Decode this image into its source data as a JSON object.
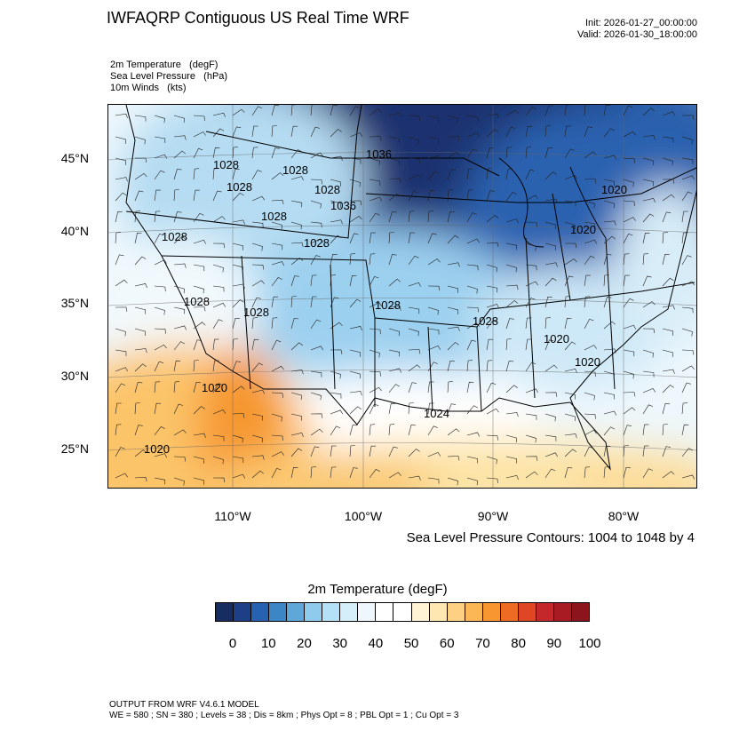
{
  "header": {
    "title": "IWFAQRP Contiguous US Real Time WRF",
    "init": "Init: 2026-01-27_00:00:00",
    "valid": "Valid: 2026-01-30_18:00:00"
  },
  "fields": [
    "2m Temperature   (degF)",
    "Sea Level Pressure   (hPa)",
    "10m Winds   (kts)"
  ],
  "map": {
    "lat_ticks": [
      "45°N",
      "40°N",
      "35°N",
      "30°N",
      "25°N"
    ],
    "lon_ticks": [
      "110°W",
      "100°W",
      "90°W",
      "80°W"
    ],
    "slp_contour_labels": [
      "1028",
      "1028",
      "1028",
      "1028",
      "1028",
      "1028",
      "1028",
      "1028",
      "1028",
      "1028",
      "1028",
      "1036",
      "1036",
      "1020",
      "1020",
      "1020",
      "1020",
      "1020",
      "1020",
      "1024"
    ],
    "contour_note": "Sea Level Pressure Contours: 1004 to 1048 by 4"
  },
  "colorbar": {
    "title": "2m Temperature  (degF)",
    "labels": [
      "0",
      "10",
      "20",
      "30",
      "40",
      "50",
      "60",
      "70",
      "80",
      "90",
      "100"
    ],
    "colors": [
      "#172c61",
      "#1d3f85",
      "#2662b0",
      "#3d86c6",
      "#5fa7d8",
      "#8ecbed",
      "#b5e1f6",
      "#d4eefa",
      "#eef7fc",
      "#ffffff",
      "#ffffff",
      "#fff4d6",
      "#fee7b0",
      "#fdd084",
      "#fbb655",
      "#f8972f",
      "#ee6b23",
      "#de4625",
      "#c5282a",
      "#a81b22",
      "#8c141c"
    ]
  },
  "footer": {
    "line1": "OUTPUT FROM WRF V4.6.1 MODEL",
    "line2": "WE = 580 ; SN = 380 ; Levels = 38 ; Dis = 8km ; Phys Opt = 8 ; PBL Opt = 1 ; Cu Opt = 3"
  }
}
